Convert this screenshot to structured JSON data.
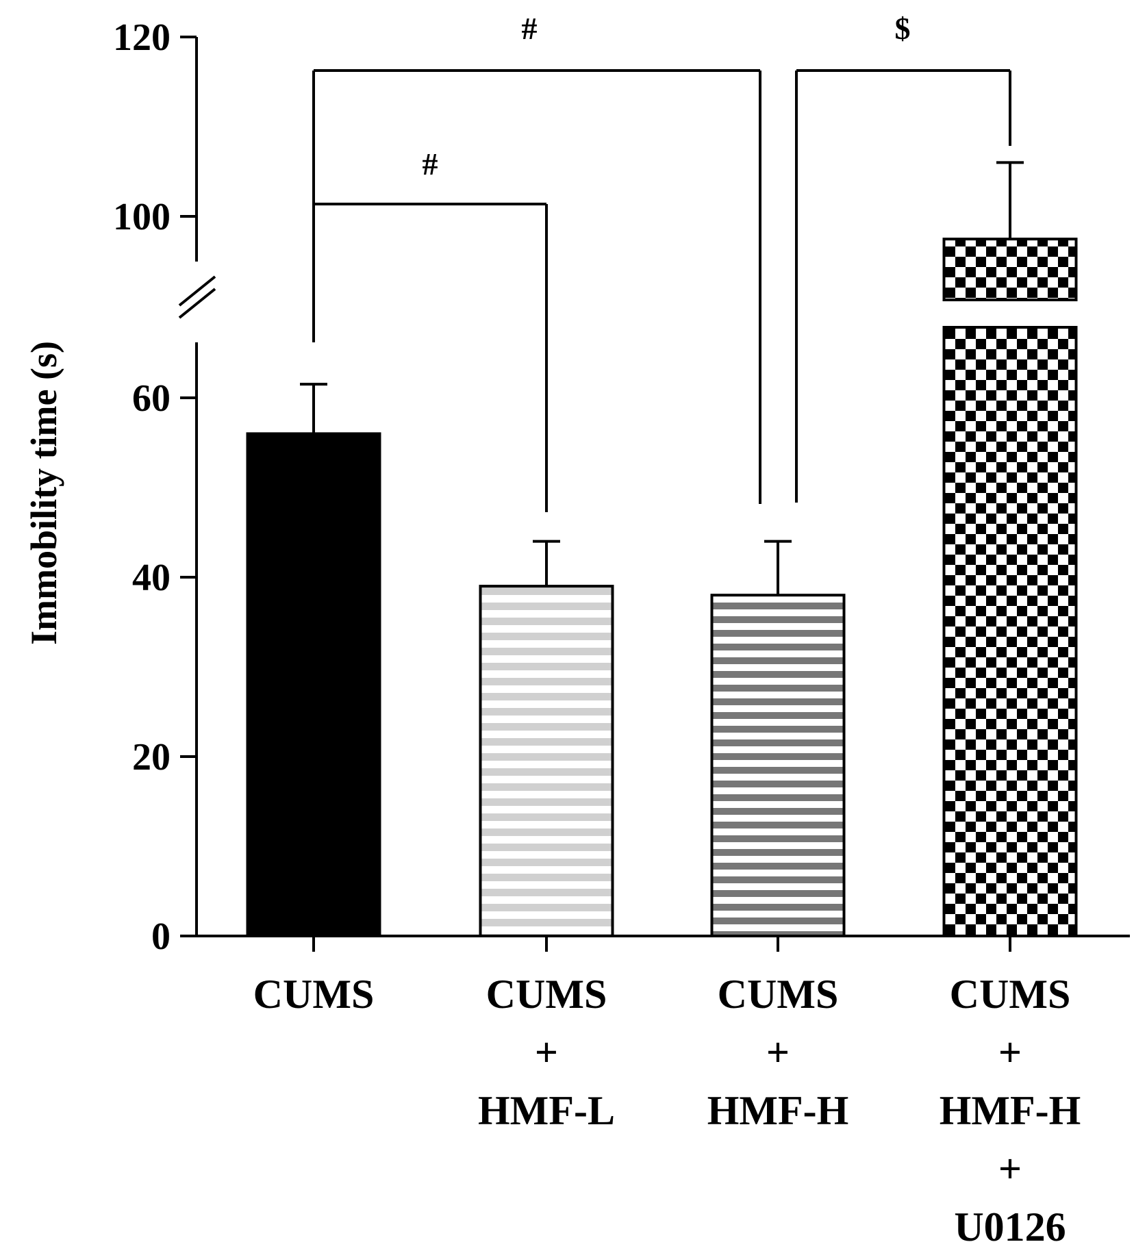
{
  "chart_data": {
    "type": "bar",
    "ylabel": "Immobility time (s)",
    "xlabel": "",
    "title": "",
    "axis_break": true,
    "ylim": [
      0,
      120
    ],
    "yticks": [
      0,
      20,
      40,
      60,
      100,
      120
    ],
    "categories": [
      [
        "CUMS"
      ],
      [
        "CUMS",
        "+",
        "HMF-L"
      ],
      [
        "CUMS",
        "+",
        "HMF-H"
      ],
      [
        "CUMS",
        "+",
        "HMF-H",
        "+",
        "U0126"
      ]
    ],
    "values": [
      56,
      39,
      38,
      95
    ],
    "errors": [
      7,
      5,
      6,
      11
    ],
    "patterns": [
      "solid",
      "light-stripes",
      "dark-stripes",
      "checker"
    ],
    "significance": [
      {
        "symbol": "#",
        "from": 0,
        "to": 1
      },
      {
        "symbol": "#",
        "from": 0,
        "to": 2
      },
      {
        "symbol": "$",
        "from": 2,
        "to": 3
      }
    ]
  }
}
